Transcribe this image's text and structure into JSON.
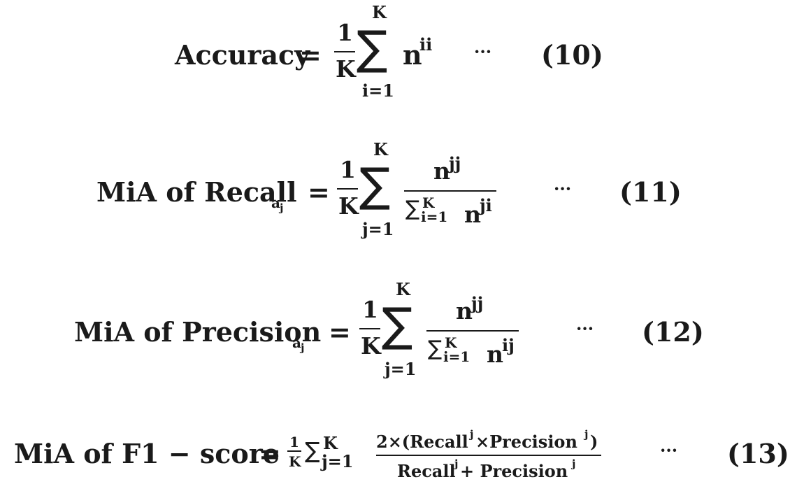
{
  "equations": [
    {
      "number": "(10)",
      "lhs": "Accuracy",
      "eq": "=",
      "frac_num": "1",
      "frac_den": "K",
      "sum_upper": "K",
      "sum_lower": "i=1",
      "term_base": "n",
      "term_sup": "ii",
      "dots": "···"
    },
    {
      "number": "(11)",
      "lhs": "MiA of Recall",
      "lhs_sub": "a",
      "lhs_subsub": "j",
      "eq": "=",
      "frac_num": "1",
      "frac_den": "K",
      "sum_upper": "K",
      "sum_lower": "j=1",
      "num_base": "n",
      "num_sup": "jj",
      "den_sum_upper": "K",
      "den_sum_lower": "i=1",
      "den_base": "n",
      "den_sup": "ji",
      "dots": "···"
    },
    {
      "number": "(12)",
      "lhs": "MiA of Precision",
      "lhs_sub": "a",
      "lhs_subsub": "j",
      "eq": "=",
      "frac_num": "1",
      "frac_den": "K",
      "sum_upper": "K",
      "sum_lower": "j=1",
      "num_base": "n",
      "num_sup": "jj",
      "den_sum_upper": "K",
      "den_sum_lower": "i=1",
      "den_base": "n",
      "den_sup": "ij",
      "dots": "···"
    },
    {
      "number": "(13)",
      "lhs": "MiA of F1 − score",
      "eq": "=",
      "frac_num": "1",
      "frac_den": "K",
      "sum_upper": "K",
      "sum_lower": "j=1",
      "num_a": "2×(Recall",
      "num_a_sup": "j",
      "num_b": "×Precision",
      "num_b_sup": "j",
      "num_c": ")",
      "den_a": "Recall",
      "den_a_sup": "j",
      "den_b": "+ Precision",
      "den_b_sup": "j",
      "dots": "···"
    }
  ]
}
